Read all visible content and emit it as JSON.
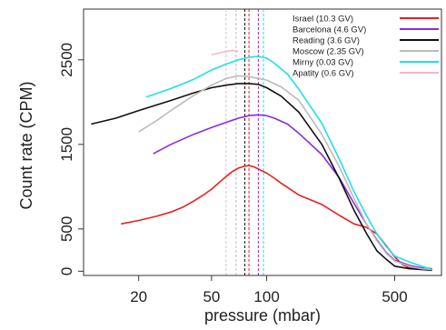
{
  "chart_data": {
    "type": "line",
    "xlabel": "pressure (mbar)",
    "ylabel": "Count rate (CPM)",
    "x_scale": "log",
    "xlim": [
      10,
      900
    ],
    "ylim": [
      -50,
      3100
    ],
    "x_ticks": [
      20,
      50,
      100,
      500
    ],
    "y_ticks": [
      0,
      500,
      1500,
      2500
    ],
    "grid": false,
    "legend_position": "top-right",
    "series": [
      {
        "name": "Israel (10.3 GV)",
        "color": "#e8201f",
        "points": [
          [
            16,
            560
          ],
          [
            20,
            600
          ],
          [
            25,
            650
          ],
          [
            30,
            700
          ],
          [
            35,
            760
          ],
          [
            40,
            830
          ],
          [
            45,
            900
          ],
          [
            50,
            970
          ],
          [
            55,
            1050
          ],
          [
            60,
            1120
          ],
          [
            65,
            1180
          ],
          [
            70,
            1220
          ],
          [
            75,
            1240
          ],
          [
            80,
            1250
          ],
          [
            85,
            1235
          ],
          [
            90,
            1210
          ],
          [
            100,
            1160
          ],
          [
            110,
            1100
          ],
          [
            120,
            1040
          ],
          [
            150,
            900
          ],
          [
            200,
            790
          ],
          [
            250,
            660
          ],
          [
            300,
            560
          ],
          [
            350,
            520
          ],
          [
            400,
            440
          ],
          [
            450,
            300
          ],
          [
            500,
            170
          ],
          [
            550,
            80
          ],
          [
            600,
            40
          ],
          [
            700,
            20
          ],
          [
            800,
            10
          ]
        ],
        "marker_pressure": 80
      },
      {
        "name": "Barcelona (4.6 GV)",
        "color": "#8a2be2",
        "points": [
          [
            24,
            1390
          ],
          [
            30,
            1500
          ],
          [
            40,
            1620
          ],
          [
            50,
            1700
          ],
          [
            60,
            1760
          ],
          [
            70,
            1810
          ],
          [
            80,
            1840
          ],
          [
            90,
            1850
          ],
          [
            100,
            1840
          ],
          [
            110,
            1810
          ],
          [
            130,
            1740
          ],
          [
            150,
            1630
          ],
          [
            200,
            1380
          ],
          [
            250,
            1100
          ],
          [
            300,
            800
          ],
          [
            350,
            560
          ],
          [
            400,
            370
          ],
          [
            450,
            220
          ],
          [
            500,
            130
          ],
          [
            600,
            70
          ],
          [
            700,
            40
          ],
          [
            800,
            30
          ]
        ],
        "marker_pressure": 90
      },
      {
        "name": "Reading (3.6 GV)",
        "color": "#111111",
        "points": [
          [
            11,
            1740
          ],
          [
            15,
            1810
          ],
          [
            20,
            1900
          ],
          [
            30,
            2020
          ],
          [
            40,
            2110
          ],
          [
            50,
            2170
          ],
          [
            60,
            2200
          ],
          [
            70,
            2220
          ],
          [
            80,
            2220
          ],
          [
            90,
            2210
          ],
          [
            100,
            2170
          ],
          [
            120,
            2070
          ],
          [
            150,
            1880
          ],
          [
            200,
            1500
          ],
          [
            250,
            1090
          ],
          [
            300,
            720
          ],
          [
            350,
            450
          ],
          [
            400,
            240
          ],
          [
            450,
            140
          ],
          [
            500,
            60
          ],
          [
            600,
            30
          ],
          [
            700,
            20
          ],
          [
            800,
            15
          ]
        ],
        "marker_pressure": 76
      },
      {
        "name": "Moscow (2.35 GV)",
        "color": "#bbbbbb",
        "points": [
          [
            20,
            1650
          ],
          [
            25,
            1780
          ],
          [
            30,
            1900
          ],
          [
            40,
            2080
          ],
          [
            50,
            2200
          ],
          [
            60,
            2280
          ],
          [
            70,
            2310
          ],
          [
            80,
            2300
          ],
          [
            90,
            2280
          ],
          [
            100,
            2260
          ],
          [
            120,
            2180
          ],
          [
            150,
            2020
          ],
          [
            200,
            1620
          ],
          [
            250,
            1230
          ],
          [
            300,
            860
          ],
          [
            350,
            560
          ],
          [
            400,
            360
          ],
          [
            450,
            210
          ],
          [
            500,
            120
          ],
          [
            600,
            60
          ],
          [
            700,
            30
          ],
          [
            800,
            20
          ]
        ],
        "marker_pressure": 68
      },
      {
        "name": "Mirny (0.03 GV)",
        "color": "#1ee0e6",
        "points": [
          [
            22,
            2060
          ],
          [
            30,
            2160
          ],
          [
            40,
            2270
          ],
          [
            50,
            2380
          ],
          [
            60,
            2450
          ],
          [
            70,
            2500
          ],
          [
            80,
            2530
          ],
          [
            90,
            2540
          ],
          [
            100,
            2520
          ],
          [
            110,
            2460
          ],
          [
            130,
            2330
          ],
          [
            150,
            2150
          ],
          [
            200,
            1750
          ],
          [
            250,
            1320
          ],
          [
            300,
            940
          ],
          [
            350,
            660
          ],
          [
            400,
            440
          ],
          [
            450,
            290
          ],
          [
            500,
            180
          ],
          [
            600,
            110
          ],
          [
            700,
            60
          ],
          [
            800,
            20
          ]
        ],
        "marker_pressure": 96
      },
      {
        "name": "Apatity (0.6 GV)",
        "color": "#f4b6c4",
        "points": [
          [
            50,
            2560
          ],
          [
            55,
            2580
          ],
          [
            60,
            2600
          ],
          [
            65,
            2610
          ],
          [
            70,
            2600
          ]
        ],
        "marker_pressure": 60
      }
    ]
  }
}
